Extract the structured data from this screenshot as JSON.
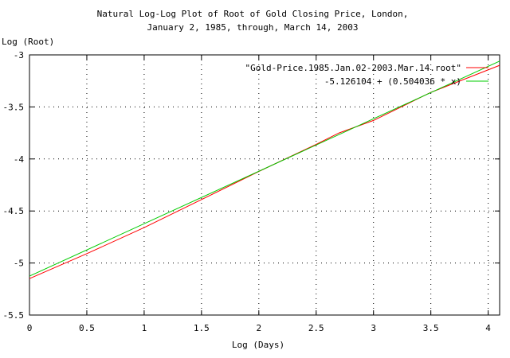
{
  "chart_data": {
    "type": "line",
    "title": [
      "Natural Log-Log Plot of Root of Gold Closing Price, London,",
      "January 2, 1985, through, March 14, 2003"
    ],
    "xlabel": "Log (Days)",
    "ylabel": "Log (Root)",
    "xlim": [
      0,
      4.1
    ],
    "ylim": [
      -5.5,
      -3
    ],
    "xticks": [
      0,
      0.5,
      1,
      1.5,
      2,
      2.5,
      3,
      3.5,
      4
    ],
    "xtick_labels": [
      "0",
      "0.5",
      "1",
      "1.5",
      "2",
      "2.5",
      "3",
      "3.5",
      "4"
    ],
    "yticks": [
      -5.5,
      -5,
      -4.5,
      -4,
      -3.5,
      -3
    ],
    "ytick_labels": [
      "-5.5",
      "-5",
      "-4.5",
      "-4",
      "-3.5",
      "-3"
    ],
    "grid": true,
    "legend_position": "top-right",
    "series": [
      {
        "name": "\"Gold-Price.1985.Jan.02-2003.Mar.14.root\"",
        "color": "#ff0000",
        "x": [
          0,
          0.5,
          1,
          1.5,
          2,
          2.5,
          2.7,
          3,
          3.5,
          3.8,
          4.1
        ],
        "y": [
          -5.15,
          -4.91,
          -4.66,
          -4.39,
          -4.12,
          -3.86,
          -3.75,
          -3.63,
          -3.36,
          -3.23,
          -3.1
        ]
      },
      {
        "name": "-5.126104 + (0.504036 * x)",
        "color": "#00cc00",
        "slope": 0.504036,
        "intercept": -5.126104,
        "x": [
          0,
          4.1
        ]
      }
    ]
  }
}
